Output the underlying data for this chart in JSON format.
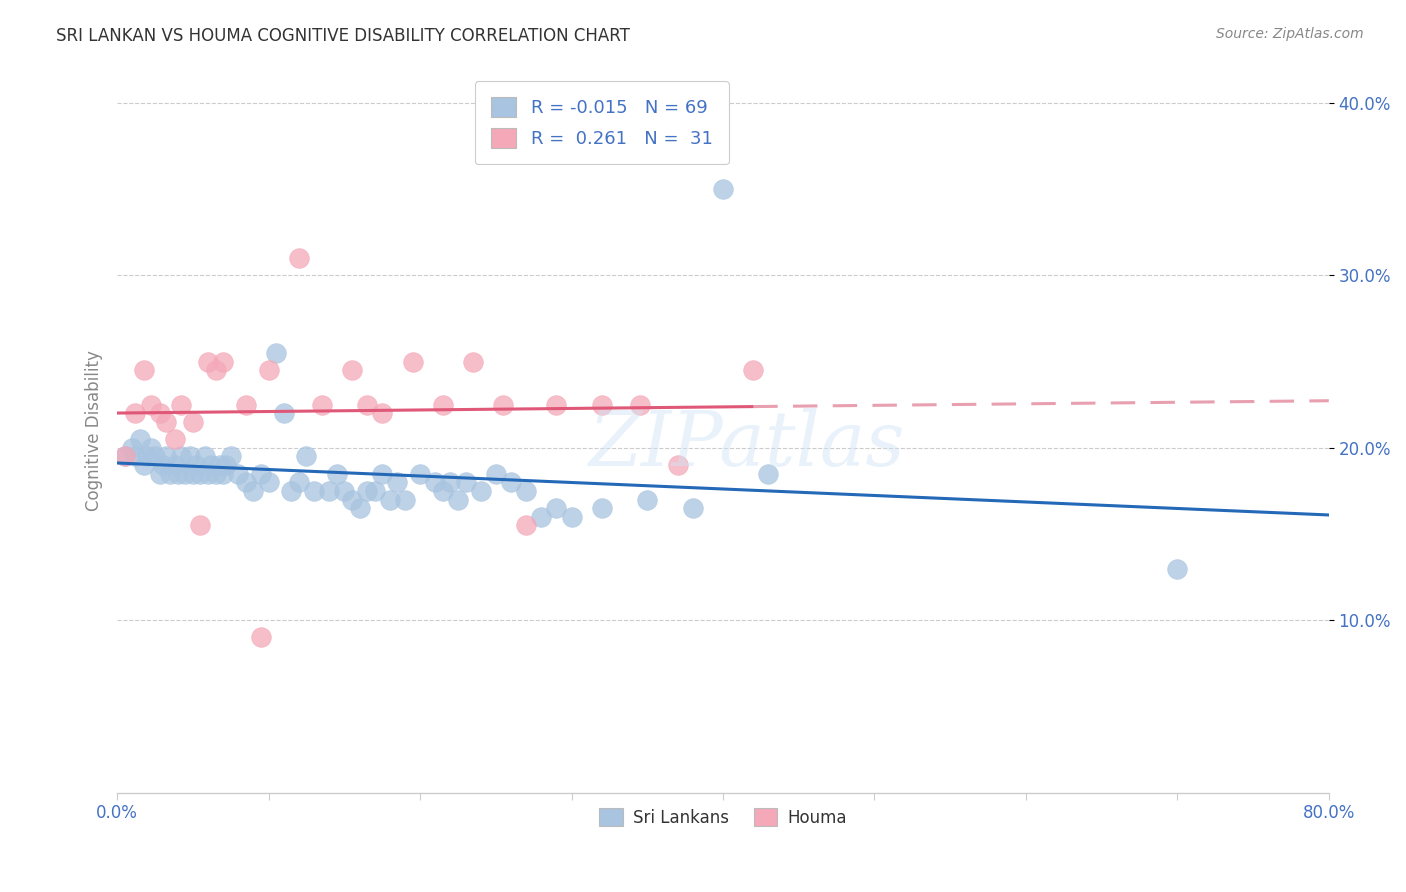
{
  "title": "SRI LANKAN VS HOUMA COGNITIVE DISABILITY CORRELATION CHART",
  "source": "Source: ZipAtlas.com",
  "ylabel": "Cognitive Disability",
  "xlim": [
    0.0,
    0.8
  ],
  "ylim": [
    0.0,
    0.42
  ],
  "ytick_positions": [
    0.1,
    0.2,
    0.3,
    0.4
  ],
  "ytick_labels": [
    "10.0%",
    "20.0%",
    "30.0%",
    "40.0%"
  ],
  "xtick_positions": [
    0.0,
    0.8
  ],
  "xtick_labels": [
    "0.0%",
    "80.0%"
  ],
  "grid_yticks": [
    0.1,
    0.2,
    0.3,
    0.4
  ],
  "sri_lankan_color": "#a8c4e0",
  "houma_color": "#f4a8b8",
  "sri_lankan_line_color": "#2468b8",
  "houma_line_color": "#e05878",
  "houma_line_dashed_color": "#e8a0b0",
  "R_sri": -0.015,
  "N_sri": 69,
  "R_houma": 0.261,
  "N_houma": 31,
  "watermark": "ZIPatlas",
  "legend_label_sri": "Sri Lankans",
  "legend_label_houma": "Houma",
  "tick_color": "#4472c4",
  "title_color": "#333333",
  "source_color": "#888888",
  "ylabel_color": "#888888",
  "sri_lankans_x": [
    0.005,
    0.01,
    0.012,
    0.015,
    0.018,
    0.02,
    0.022,
    0.025,
    0.028,
    0.03,
    0.032,
    0.035,
    0.038,
    0.04,
    0.042,
    0.045,
    0.048,
    0.05,
    0.052,
    0.055,
    0.058,
    0.06,
    0.062,
    0.065,
    0.068,
    0.07,
    0.072,
    0.075,
    0.08,
    0.085,
    0.09,
    0.095,
    0.1,
    0.105,
    0.11,
    0.115,
    0.12,
    0.125,
    0.13,
    0.14,
    0.145,
    0.15,
    0.155,
    0.16,
    0.165,
    0.17,
    0.175,
    0.18,
    0.185,
    0.19,
    0.2,
    0.21,
    0.215,
    0.22,
    0.225,
    0.23,
    0.24,
    0.25,
    0.26,
    0.27,
    0.28,
    0.29,
    0.3,
    0.32,
    0.35,
    0.38,
    0.4,
    0.43,
    0.7
  ],
  "sri_lankans_y": [
    0.195,
    0.2,
    0.195,
    0.205,
    0.19,
    0.195,
    0.2,
    0.195,
    0.185,
    0.19,
    0.195,
    0.185,
    0.19,
    0.185,
    0.195,
    0.185,
    0.195,
    0.185,
    0.19,
    0.185,
    0.195,
    0.185,
    0.19,
    0.185,
    0.19,
    0.185,
    0.19,
    0.195,
    0.185,
    0.18,
    0.175,
    0.185,
    0.18,
    0.255,
    0.22,
    0.175,
    0.18,
    0.195,
    0.175,
    0.175,
    0.185,
    0.175,
    0.17,
    0.165,
    0.175,
    0.175,
    0.185,
    0.17,
    0.18,
    0.17,
    0.185,
    0.18,
    0.175,
    0.18,
    0.17,
    0.18,
    0.175,
    0.185,
    0.18,
    0.175,
    0.16,
    0.165,
    0.16,
    0.165,
    0.17,
    0.165,
    0.35,
    0.185,
    0.13
  ],
  "houma_x": [
    0.005,
    0.012,
    0.018,
    0.022,
    0.028,
    0.032,
    0.038,
    0.042,
    0.05,
    0.055,
    0.06,
    0.065,
    0.07,
    0.085,
    0.095,
    0.1,
    0.12,
    0.135,
    0.155,
    0.165,
    0.175,
    0.195,
    0.215,
    0.235,
    0.255,
    0.27,
    0.29,
    0.32,
    0.345,
    0.37,
    0.42
  ],
  "houma_y": [
    0.195,
    0.22,
    0.245,
    0.225,
    0.22,
    0.215,
    0.205,
    0.225,
    0.215,
    0.155,
    0.25,
    0.245,
    0.25,
    0.225,
    0.09,
    0.245,
    0.31,
    0.225,
    0.245,
    0.225,
    0.22,
    0.25,
    0.225,
    0.25,
    0.225,
    0.155,
    0.225,
    0.225,
    0.225,
    0.19,
    0.245
  ]
}
